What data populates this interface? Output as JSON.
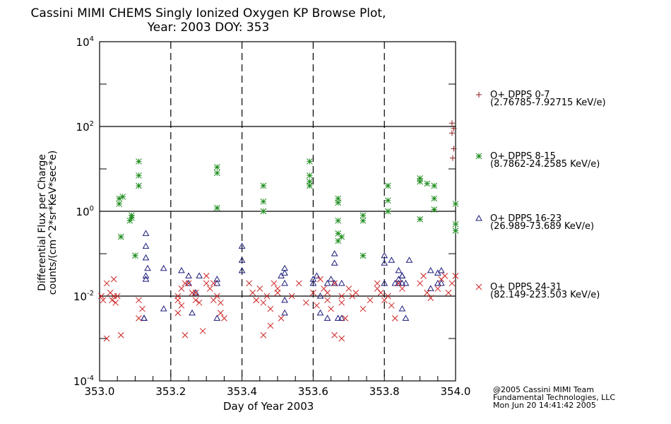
{
  "chart_data": {
    "type": "scatter",
    "title": "Cassini MIMI CHEMS Singly Ionized Oxygen KP Browse Plot,",
    "subtitle": "Year: 2003 DOY: 353",
    "xlabel": "Day of Year 2003",
    "ylabel_line1": "Differential Flux per Charge",
    "ylabel_line2": "counts/(cm^2*sr*KeV*sec*e)",
    "xlim": [
      353.0,
      354.0
    ],
    "ylim": [
      0.0001,
      10000
    ],
    "yscale": "log",
    "xticks": [
      "353.0",
      "353.2",
      "353.4",
      "353.6",
      "353.8",
      "354.0"
    ],
    "yticks": [
      {
        "base": "10",
        "exp": "4"
      },
      {
        "base": "10",
        "exp": "2"
      },
      {
        "base": "10",
        "exp": "0"
      },
      {
        "base": "10",
        "exp": "-2"
      },
      {
        "base": "10",
        "exp": "-4"
      }
    ],
    "hlines": [
      100,
      1,
      0.01
    ],
    "vlines_dashed": [
      353.2,
      353.4,
      353.6,
      353.8
    ],
    "legend_position": "right",
    "series": [
      {
        "name": "O+ DPPS 0-7",
        "range": "(2.76785-7.92715 KeV/e)",
        "marker": "plus",
        "color": "#8b1a1a",
        "x": [
          353.99,
          353.995,
          353.99,
          353.995,
          353.992
        ],
        "y": [
          120,
          90,
          70,
          30,
          18
        ]
      },
      {
        "name": "O+ DPPS 8-15",
        "range": "(8.7862-24.2585 KeV/e)",
        "marker": "asterisk",
        "color": "#1a8a1a",
        "x": [
          353.055,
          353.055,
          353.06,
          353.09,
          353.085,
          353.1,
          353.11,
          353.11,
          353.11,
          353.065,
          353.09,
          353.33,
          353.33,
          353.33,
          353.46,
          353.46,
          353.46,
          353.59,
          353.59,
          353.59,
          353.59,
          353.67,
          353.67,
          353.67,
          353.67,
          353.67,
          353.68,
          353.74,
          353.74,
          353.74,
          353.81,
          353.81,
          353.81,
          353.9,
          353.9,
          353.9,
          353.92,
          353.94,
          353.94,
          353.94,
          354.0,
          354.0,
          354.0
        ],
        "y": [
          2,
          1.5,
          0.25,
          0.8,
          0.6,
          0.09,
          4,
          7,
          15,
          2.2,
          0.7,
          11,
          8,
          1.2,
          4,
          1.7,
          1.0,
          15,
          7,
          4,
          5,
          2,
          1.6,
          0.6,
          0.3,
          0.2,
          0.25,
          0.8,
          0.6,
          0.09,
          4,
          1.8,
          1,
          6,
          5,
          0.65,
          4.5,
          4,
          2,
          1.1,
          1.5,
          0.5,
          0.35
        ]
      },
      {
        "name": "O+ DPPS 16-23",
        "range": "(26.989-73.689 KeV/e)",
        "marker": "triangle",
        "color": "#1a1a7a",
        "x": [
          353.13,
          353.13,
          353.13,
          353.135,
          353.13,
          353.13,
          353.125,
          353.125,
          353.18,
          353.18,
          353.23,
          353.25,
          353.25,
          353.26,
          353.27,
          353.28,
          353.33,
          353.33,
          353.33,
          353.4,
          353.4,
          353.4,
          353.52,
          353.52,
          353.52,
          353.52,
          353.52,
          353.51,
          353.6,
          353.6,
          353.61,
          353.62,
          353.62,
          353.64,
          353.64,
          353.65,
          353.66,
          353.66,
          353.66,
          353.67,
          353.68,
          353.68,
          353.8,
          353.8,
          353.8,
          353.82,
          353.84,
          353.84,
          353.85,
          353.86,
          353.85,
          353.86,
          353.83,
          353.84,
          353.85,
          353.85,
          353.87,
          353.93,
          353.93,
          353.95,
          353.95,
          353.96,
          353.96
        ],
        "y": [
          0.3,
          0.15,
          0.08,
          0.045,
          0.03,
          0.025,
          0.003,
          0.003,
          0.045,
          0.005,
          0.04,
          0.03,
          0.02,
          0.004,
          0.012,
          0.03,
          0.025,
          0.02,
          0.003,
          0.15,
          0.07,
          0.04,
          0.045,
          0.035,
          0.02,
          0.008,
          0.004,
          0.03,
          0.025,
          0.02,
          0.03,
          0.01,
          0.004,
          0.02,
          0.003,
          0.025,
          0.1,
          0.06,
          0.02,
          0.003,
          0.003,
          0.02,
          0.09,
          0.06,
          0.02,
          0.07,
          0.04,
          0.02,
          0.03,
          0.02,
          0.005,
          0.003,
          0.02,
          0.025,
          0.03,
          0.02,
          0.07,
          0.04,
          0.015,
          0.02,
          0.035,
          0.04,
          0.02
        ]
      },
      {
        "name": "O+ DPPS 24-31",
        "range": "(82.149-223.503 KeV/e)",
        "marker": "x",
        "color": "#cc2222",
        "x": [
          353.005,
          353.01,
          353.02,
          353.03,
          353.035,
          353.04,
          353.045,
          353.05,
          353.02,
          353.06,
          353.04,
          353.11,
          353.12,
          353.11,
          353.22,
          353.22,
          353.22,
          353.23,
          353.25,
          353.27,
          353.28,
          353.3,
          353.31,
          353.32,
          353.33,
          353.34,
          353.34,
          353.35,
          353.24,
          353.26,
          353.27,
          353.29,
          353.3,
          353.32,
          353.23,
          353.24,
          353.43,
          353.44,
          353.45,
          353.46,
          353.47,
          353.48,
          353.49,
          353.5,
          353.51,
          353.42,
          353.44,
          353.46,
          353.48,
          353.5,
          353.54,
          353.56,
          353.58,
          353.6,
          353.61,
          353.62,
          353.63,
          353.64,
          353.64,
          353.65,
          353.66,
          353.68,
          353.68,
          353.69,
          353.7,
          353.71,
          353.72,
          353.74,
          353.76,
          353.78,
          353.79,
          353.8,
          353.81,
          353.82,
          353.83,
          353.84,
          353.85,
          353.9,
          353.91,
          353.92,
          353.93,
          353.95,
          353.96,
          353.97,
          353.98,
          353.99,
          354.0,
          353.78,
          353.66,
          353.68
        ],
        "y": [
          0.01,
          0.008,
          0.02,
          0.012,
          0.008,
          0.01,
          0.007,
          0.01,
          0.001,
          0.0012,
          0.025,
          0.008,
          0.005,
          0.003,
          0.01,
          0.008,
          0.004,
          0.015,
          0.02,
          0.012,
          0.007,
          0.02,
          0.015,
          0.008,
          0.01,
          0.007,
          0.004,
          0.003,
          0.02,
          0.012,
          0.008,
          0.0015,
          0.03,
          0.02,
          0.006,
          0.0012,
          0.012,
          0.008,
          0.015,
          0.007,
          0.01,
          0.005,
          0.02,
          0.012,
          0.003,
          0.02,
          0.008,
          0.0012,
          0.002,
          0.015,
          0.01,
          0.02,
          0.007,
          0.012,
          0.006,
          0.025,
          0.015,
          0.012,
          0.008,
          0.005,
          0.02,
          0.01,
          0.007,
          0.003,
          0.015,
          0.01,
          0.012,
          0.005,
          0.008,
          0.02,
          0.012,
          0.008,
          0.01,
          0.006,
          0.003,
          0.02,
          0.015,
          0.02,
          0.03,
          0.012,
          0.009,
          0.015,
          0.025,
          0.03,
          0.012,
          0.02,
          0.03,
          0.015,
          0.0012,
          0.001
        ]
      }
    ],
    "footer": [
      "@2005 Cassini MIMI Team",
      "Fundamental Technologies, LLC",
      "Mon Jun 20 14:41:42 2005"
    ]
  }
}
